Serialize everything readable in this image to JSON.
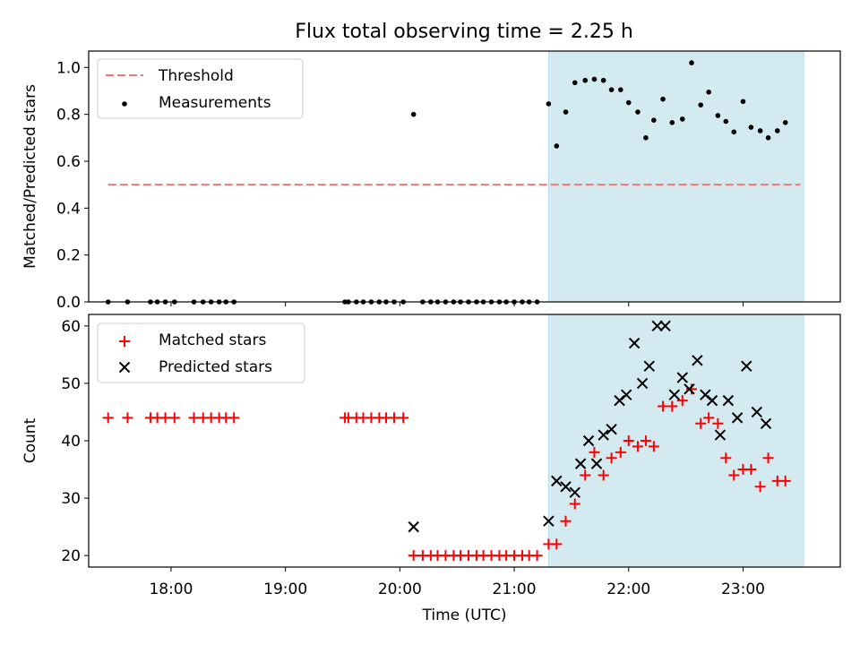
{
  "title": "Flux total observing time = 2.25 h",
  "chart_data": [
    {
      "type": "scatter",
      "ylabel": "Matched/Predicted stars",
      "xlim": [
        17.28,
        23.85
      ],
      "ylim": [
        0,
        1.07
      ],
      "yticks": [
        "0.0",
        "0.2",
        "0.4",
        "0.6",
        "0.8",
        "1.0"
      ],
      "ytick_values": [
        0,
        0.2,
        0.4,
        0.6,
        0.8,
        1.0
      ],
      "shaded_span": {
        "start": 21.3,
        "end": 23.53,
        "color": "#d3eaf1"
      },
      "threshold": {
        "name": "Threshold",
        "value": 0.5,
        "x_start": 17.45,
        "x_end": 23.5,
        "color": "#f07878"
      },
      "legend": {
        "location": "top-left",
        "entries": [
          "Threshold",
          "Measurements"
        ]
      },
      "series": [
        {
          "name": "Measurements",
          "color": "#000000",
          "points": [
            [
              17.45,
              0
            ],
            [
              17.62,
              0
            ],
            [
              17.82,
              0
            ],
            [
              17.88,
              0
            ],
            [
              17.95,
              0
            ],
            [
              18.03,
              0
            ],
            [
              18.2,
              0
            ],
            [
              18.28,
              0
            ],
            [
              18.35,
              0
            ],
            [
              18.42,
              0
            ],
            [
              18.48,
              0
            ],
            [
              18.55,
              0
            ],
            [
              19.52,
              0
            ],
            [
              19.55,
              0
            ],
            [
              19.62,
              0
            ],
            [
              19.68,
              0
            ],
            [
              19.75,
              0
            ],
            [
              19.82,
              0
            ],
            [
              19.88,
              0
            ],
            [
              19.95,
              0
            ],
            [
              20.03,
              0
            ],
            [
              20.12,
              0.8
            ],
            [
              20.2,
              0
            ],
            [
              20.27,
              0
            ],
            [
              20.33,
              0
            ],
            [
              20.4,
              0
            ],
            [
              20.47,
              0
            ],
            [
              20.53,
              0
            ],
            [
              20.6,
              0
            ],
            [
              20.67,
              0
            ],
            [
              20.73,
              0
            ],
            [
              20.8,
              0
            ],
            [
              20.87,
              0
            ],
            [
              20.93,
              0
            ],
            [
              21.0,
              0
            ],
            [
              21.07,
              0
            ],
            [
              21.13,
              0
            ],
            [
              21.2,
              0
            ],
            [
              21.3,
              0.845
            ],
            [
              21.37,
              0.665
            ],
            [
              21.45,
              0.81
            ],
            [
              21.53,
              0.935
            ],
            [
              21.62,
              0.945
            ],
            [
              21.7,
              0.95
            ],
            [
              21.78,
              0.945
            ],
            [
              21.85,
              0.905
            ],
            [
              21.93,
              0.905
            ],
            [
              22.0,
              0.85
            ],
            [
              22.08,
              0.81
            ],
            [
              22.15,
              0.7
            ],
            [
              22.22,
              0.775
            ],
            [
              22.3,
              0.865
            ],
            [
              22.38,
              0.765
            ],
            [
              22.47,
              0.78
            ],
            [
              22.55,
              1.02
            ],
            [
              22.63,
              0.84
            ],
            [
              22.7,
              0.895
            ],
            [
              22.78,
              0.795
            ],
            [
              22.85,
              0.77
            ],
            [
              22.92,
              0.725
            ],
            [
              23.0,
              0.855
            ],
            [
              23.07,
              0.745
            ],
            [
              23.15,
              0.73
            ],
            [
              23.22,
              0.7
            ],
            [
              23.3,
              0.73
            ],
            [
              23.37,
              0.765
            ]
          ]
        }
      ]
    },
    {
      "type": "scatter",
      "xlabel": "Time (UTC)",
      "ylabel": "Count",
      "xlim": [
        17.28,
        23.85
      ],
      "ylim": [
        18,
        62
      ],
      "xticks": [
        "18:00",
        "19:00",
        "20:00",
        "21:00",
        "22:00",
        "23:00"
      ],
      "xtick_values": [
        18,
        19,
        20,
        21,
        22,
        23
      ],
      "yticks": [
        "20",
        "30",
        "40",
        "50",
        "60"
      ],
      "ytick_values": [
        20,
        30,
        40,
        50,
        60
      ],
      "shaded_span": {
        "start": 21.3,
        "end": 23.53,
        "color": "#d3eaf1"
      },
      "legend": {
        "location": "top-left",
        "entries": [
          "Matched stars",
          "Predicted stars"
        ]
      },
      "series": [
        {
          "name": "Matched stars",
          "marker": "plus",
          "color": "#ff0000",
          "points": [
            [
              17.45,
              44
            ],
            [
              17.62,
              44
            ],
            [
              17.82,
              44
            ],
            [
              17.88,
              44
            ],
            [
              17.95,
              44
            ],
            [
              18.03,
              44
            ],
            [
              18.2,
              44
            ],
            [
              18.28,
              44
            ],
            [
              18.35,
              44
            ],
            [
              18.42,
              44
            ],
            [
              18.48,
              44
            ],
            [
              18.55,
              44
            ],
            [
              19.52,
              44
            ],
            [
              19.55,
              44
            ],
            [
              19.62,
              44
            ],
            [
              19.68,
              44
            ],
            [
              19.75,
              44
            ],
            [
              19.82,
              44
            ],
            [
              19.88,
              44
            ],
            [
              19.95,
              44
            ],
            [
              20.03,
              44
            ],
            [
              20.12,
              20
            ],
            [
              20.2,
              20
            ],
            [
              20.27,
              20
            ],
            [
              20.33,
              20
            ],
            [
              20.4,
              20
            ],
            [
              20.47,
              20
            ],
            [
              20.53,
              20
            ],
            [
              20.6,
              20
            ],
            [
              20.67,
              20
            ],
            [
              20.73,
              20
            ],
            [
              20.8,
              20
            ],
            [
              20.87,
              20
            ],
            [
              20.93,
              20
            ],
            [
              21.0,
              20
            ],
            [
              21.07,
              20
            ],
            [
              21.13,
              20
            ],
            [
              21.2,
              20
            ],
            [
              21.3,
              22
            ],
            [
              21.37,
              22
            ],
            [
              21.45,
              26
            ],
            [
              21.53,
              29
            ],
            [
              21.62,
              34
            ],
            [
              21.7,
              38
            ],
            [
              21.78,
              34
            ],
            [
              21.85,
              37
            ],
            [
              21.93,
              38
            ],
            [
              22.0,
              40
            ],
            [
              22.08,
              39
            ],
            [
              22.15,
              40
            ],
            [
              22.22,
              39
            ],
            [
              22.3,
              46
            ],
            [
              22.38,
              46
            ],
            [
              22.47,
              47
            ],
            [
              22.55,
              49
            ],
            [
              22.63,
              43
            ],
            [
              22.7,
              44
            ],
            [
              22.78,
              43
            ],
            [
              22.85,
              37
            ],
            [
              22.92,
              34
            ],
            [
              23.0,
              35
            ],
            [
              23.07,
              35
            ],
            [
              23.15,
              32
            ],
            [
              23.22,
              37
            ],
            [
              23.3,
              33
            ],
            [
              23.37,
              33
            ]
          ]
        },
        {
          "name": "Predicted stars",
          "marker": "x",
          "color": "#000000",
          "points": [
            [
              20.12,
              25
            ],
            [
              21.3,
              26
            ],
            [
              21.37,
              33
            ],
            [
              21.45,
              32
            ],
            [
              21.53,
              31
            ],
            [
              21.58,
              36
            ],
            [
              21.65,
              40
            ],
            [
              21.72,
              36
            ],
            [
              21.78,
              41
            ],
            [
              21.85,
              42
            ],
            [
              21.92,
              47
            ],
            [
              21.98,
              48
            ],
            [
              22.05,
              57
            ],
            [
              22.12,
              50
            ],
            [
              22.18,
              53
            ],
            [
              22.25,
              60
            ],
            [
              22.32,
              60
            ],
            [
              22.4,
              48
            ],
            [
              22.47,
              51
            ],
            [
              22.53,
              49
            ],
            [
              22.6,
              54
            ],
            [
              22.67,
              48
            ],
            [
              22.73,
              47
            ],
            [
              22.8,
              41
            ],
            [
              22.87,
              47
            ],
            [
              22.95,
              44
            ],
            [
              23.03,
              53
            ],
            [
              23.12,
              45
            ],
            [
              23.2,
              43
            ]
          ]
        }
      ]
    }
  ]
}
